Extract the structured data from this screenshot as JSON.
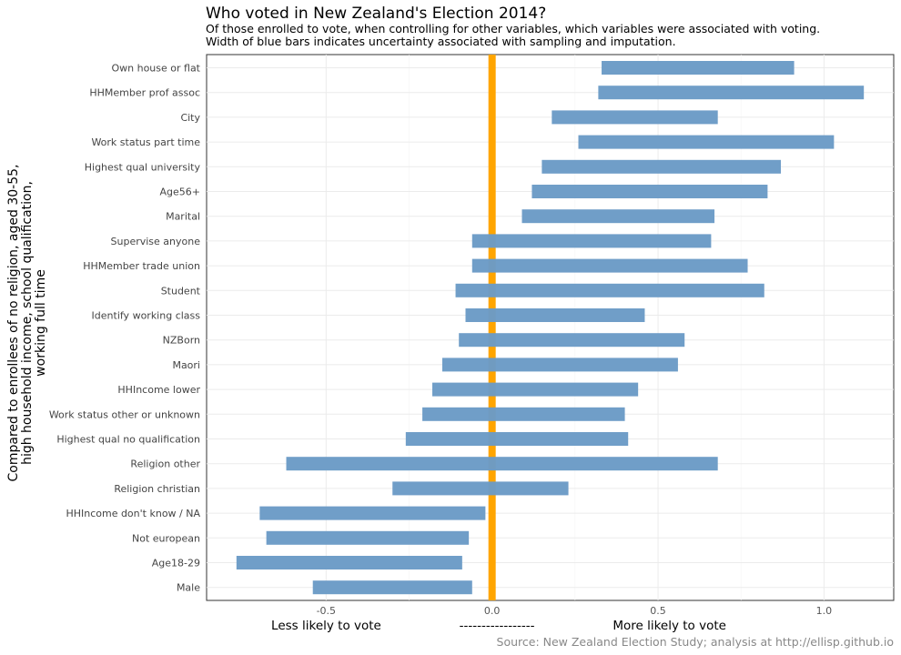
{
  "chart_data": {
    "type": "bar",
    "orientation": "horizontal-range",
    "title": "Who voted in New Zealand's Election 2014?",
    "subtitle": [
      "Of those enrolled to vote, when controlling for other variables, which variables were associated with voting.",
      "Width of blue bars indicates uncertainty associated with sampling and imputation."
    ],
    "ylabel": [
      "Compared to enrollees of no religion, aged 30-55,",
      "high household income, school qualification,",
      "working full time"
    ],
    "xlabel": "Less likely to vote                    -----------------                    More likely to vote",
    "caption": "Source: New Zealand Election Study; analysis at http://ellisp.github.io",
    "xlim": [
      -0.86,
      1.21
    ],
    "xticks": [
      -0.5,
      0.0,
      0.5,
      1.0
    ],
    "xtick_labels": [
      "-0.5",
      "0.0",
      "0.5",
      "1.0"
    ],
    "reference_line": 0,
    "grid": true,
    "colors": {
      "bar": "#6b9bc6",
      "reference": "#ffa500",
      "grid": "#ebebeb"
    },
    "categories": [
      "Own house or flat",
      "HHMember prof assoc",
      "City",
      "Work status part time",
      "Highest qual university",
      "Age56+",
      "Marital",
      "Supervise anyone",
      "HHMember trade union",
      "Student",
      "Identify working class",
      "NZBorn",
      "Maori",
      "HHIncome lower",
      "Work status other or unknown",
      "Highest qual no qualification",
      "Religion other",
      "Religion christian",
      "HHIncome don't know / NA",
      "Not european",
      "Age18-29",
      "Male"
    ],
    "ranges": [
      [
        0.33,
        0.91
      ],
      [
        0.32,
        1.12
      ],
      [
        0.18,
        0.68
      ],
      [
        0.26,
        1.03
      ],
      [
        0.15,
        0.87
      ],
      [
        0.12,
        0.83
      ],
      [
        0.09,
        0.67
      ],
      [
        -0.06,
        0.66
      ],
      [
        -0.06,
        0.77
      ],
      [
        -0.11,
        0.82
      ],
      [
        -0.08,
        0.46
      ],
      [
        -0.1,
        0.58
      ],
      [
        -0.15,
        0.56
      ],
      [
        -0.18,
        0.44
      ],
      [
        -0.21,
        0.4
      ],
      [
        -0.26,
        0.41
      ],
      [
        -0.62,
        0.68
      ],
      [
        -0.3,
        0.23
      ],
      [
        -0.7,
        -0.02
      ],
      [
        -0.68,
        -0.07
      ],
      [
        -0.77,
        -0.09
      ],
      [
        -0.54,
        -0.06
      ]
    ]
  }
}
